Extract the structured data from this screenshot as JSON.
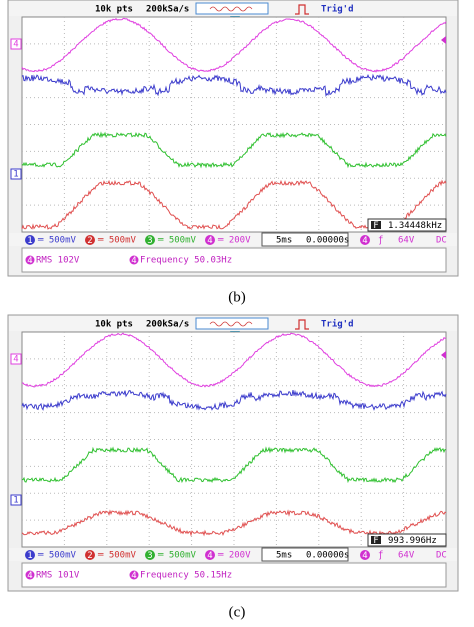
{
  "panels": [
    {
      "header": {
        "points": "10k pts",
        "rate": "200kSa/s",
        "status": "Trig'd"
      },
      "markers": [
        {
          "num": "4",
          "color": "#e040e0"
        },
        {
          "num": "1",
          "color": "#3c3ccc"
        }
      ],
      "channels": [
        {
          "num": "1",
          "setting": "═ 500mV",
          "color": "#3c3ccc"
        },
        {
          "num": "2",
          "setting": "═ 500mV",
          "color": "#d03030"
        },
        {
          "num": "3",
          "setting": "═ 500mV",
          "color": "#30b030"
        },
        {
          "num": "4",
          "setting": "═ 200V",
          "color": "#d030d0"
        }
      ],
      "timebase": "5ms",
      "delay": "0.00000s",
      "trigger": {
        "source": "4",
        "slope": "ƒ",
        "level": "64V",
        "coupling": "DC"
      },
      "counter": {
        "icon": "F",
        "value": "1.34448kHz"
      },
      "measurements": [
        {
          "source": "4",
          "text": "RMS 102V"
        },
        {
          "source": "4",
          "text": "Frequency 50.03Hz"
        }
      ],
      "label": "(b)"
    },
    {
      "header": {
        "points": "10k pts",
        "rate": "200kSa/s",
        "status": "Trig'd"
      },
      "markers": [
        {
          "num": "4",
          "color": "#e040e0"
        },
        {
          "num": "1",
          "color": "#3c3ccc"
        }
      ],
      "channels": [
        {
          "num": "1",
          "setting": "═ 500mV",
          "color": "#3c3ccc"
        },
        {
          "num": "2",
          "setting": "═ 500mV",
          "color": "#d03030"
        },
        {
          "num": "3",
          "setting": "═ 500mV",
          "color": "#30b030"
        },
        {
          "num": "4",
          "setting": "═ 200V",
          "color": "#d030d0"
        }
      ],
      "timebase": "5ms",
      "delay": "0.00000s",
      "trigger": {
        "source": "4",
        "slope": "ƒ",
        "level": "64V",
        "coupling": "DC"
      },
      "counter": {
        "icon": "F",
        "value": "993.996Hz"
      },
      "measurements": [
        {
          "source": "4",
          "text": "RMS 101V"
        },
        {
          "source": "4",
          "text": "Frequency 50.15Hz"
        }
      ],
      "label": "(c)"
    }
  ]
}
